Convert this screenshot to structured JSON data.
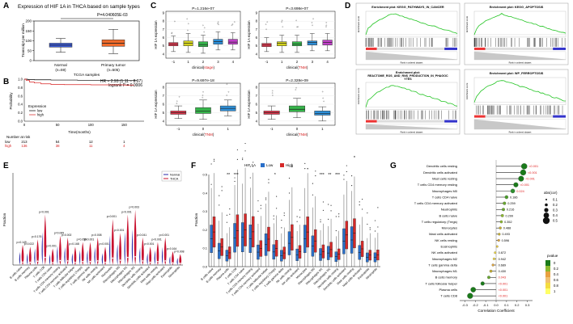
{
  "panels": {
    "A": {
      "letter": "A",
      "title": "Expression of HIF 1A in THCA based on sample types",
      "pvalue": "P=4.040605E-03",
      "ylabel": "Transcript per million",
      "xlabel": "TCGA samples",
      "yticks": [
        "0",
        "50",
        "100",
        "150",
        "200"
      ],
      "groups": [
        {
          "name": "Normal",
          "n": "(n=59)",
          "color": "#3b5bd6",
          "q1": 68,
          "median": 78,
          "q3": 88,
          "low": 42,
          "high": 112
        },
        {
          "name": "Primary tumor",
          "n": "(n=505)",
          "color": "#f06a2a",
          "q1": 72,
          "median": 88,
          "q3": 105,
          "low": 35,
          "high": 158
        }
      ]
    },
    "B": {
      "letter": "B",
      "hr_text": "HR = 2.93 (1.11 − 8.07)",
      "logrank_text": "logrank P = 0.0006",
      "ylabel": "Probability",
      "xlabel": "Time(months)",
      "yticks": [
        "0.0",
        "0.2",
        "0.4",
        "0.6",
        "0.8",
        "1.0"
      ],
      "xticks": [
        "0",
        "50",
        "100",
        "150"
      ],
      "legend_title": "Expression",
      "legend": [
        "low",
        "high"
      ],
      "risk_title": "Number at risk",
      "risk_rows": [
        {
          "label": "low",
          "values": [
            "213",
            "54",
            "12",
            "1"
          ],
          "color": "#000000"
        },
        {
          "label": "high",
          "values": [
            "136",
            "38",
            "11",
            "4"
          ],
          "color": "#d62020"
        }
      ]
    },
    "C": {
      "letter": "C",
      "ylabel": "HIF 1A expression",
      "subplots": [
        {
          "pvalue": "P=1.216e-07",
          "xlabel_prefix": "clinical(",
          "xlabel_key": "stage",
          "xlabel_suffix": ")",
          "yticks": [
            "4",
            "5",
            "6",
            "7",
            "8",
            "9"
          ],
          "ymin": 3.5,
          "ymax": 9.2,
          "categories": [
            "-1",
            "1",
            "2",
            "3",
            "4"
          ],
          "boxes": [
            {
              "color": "#e8384f",
              "q1": 5.0,
              "median": 5.2,
              "q3": 5.4,
              "low": 4.3,
              "high": 6.2
            },
            {
              "color": "#d4d41c",
              "q1": 5.0,
              "median": 5.3,
              "q3": 5.6,
              "low": 4.2,
              "high": 6.5
            },
            {
              "color": "#35b54a",
              "q1": 4.9,
              "median": 5.15,
              "q3": 5.5,
              "low": 4.1,
              "high": 6.3
            },
            {
              "color": "#2d8fd8",
              "q1": 5.2,
              "median": 5.5,
              "q3": 5.8,
              "low": 4.5,
              "high": 6.7
            },
            {
              "color": "#c040c8",
              "q1": 5.2,
              "median": 5.45,
              "q3": 5.8,
              "low": 4.5,
              "high": 6.6
            }
          ]
        },
        {
          "pvalue": "P=3.698e-07",
          "xlabel_prefix": "clinical(",
          "xlabel_key": "TNM",
          "xlabel_suffix": ")",
          "yticks": [
            "4",
            "5",
            "6",
            "7",
            "8",
            "9"
          ],
          "ymin": 3.5,
          "ymax": 9.2,
          "categories": [
            "-1",
            "1",
            "2",
            "3",
            "4"
          ],
          "boxes": [
            {
              "color": "#e8384f",
              "q1": 4.9,
              "median": 5.1,
              "q3": 5.3,
              "low": 4.3,
              "high": 6.0
            },
            {
              "color": "#d4d41c",
              "q1": 5.0,
              "median": 5.3,
              "q3": 5.5,
              "low": 4.2,
              "high": 6.3
            },
            {
              "color": "#35b54a",
              "q1": 5.0,
              "median": 5.2,
              "q3": 5.5,
              "low": 4.2,
              "high": 6.3
            },
            {
              "color": "#2d8fd8",
              "q1": 5.1,
              "median": 5.4,
              "q3": 5.6,
              "low": 4.4,
              "high": 6.5
            },
            {
              "color": "#c040c8",
              "q1": 5.1,
              "median": 5.4,
              "q3": 5.7,
              "low": 4.4,
              "high": 6.5
            }
          ]
        },
        {
          "pvalue": "P=9.697e-18",
          "xlabel_prefix": "clinical(",
          "xlabel_key": "TNM",
          "xlabel_suffix": ")",
          "yticks": [
            "4",
            "5",
            "6",
            "7",
            "8"
          ],
          "ymin": 3.5,
          "ymax": 8.5,
          "categories": [
            "-1",
            "0",
            "1"
          ],
          "boxes": [
            {
              "color": "#e8384f",
              "q1": 4.8,
              "median": 5.0,
              "q3": 5.2,
              "low": 4.3,
              "high": 5.8
            },
            {
              "color": "#35b54a",
              "q1": 4.9,
              "median": 5.2,
              "q3": 5.6,
              "low": 4.2,
              "high": 6.5
            },
            {
              "color": "#2d8fd8",
              "q1": 5.2,
              "median": 5.5,
              "q3": 5.8,
              "low": 4.6,
              "high": 6.5
            }
          ]
        },
        {
          "pvalue": "P=2.328e-09",
          "xlabel_prefix": "clinical(",
          "xlabel_key": "TNM",
          "xlabel_suffix": ")",
          "yticks": [
            "4",
            "5",
            "6",
            "7",
            "8"
          ],
          "ymin": 3.5,
          "ymax": 8.5,
          "categories": [
            "-1",
            "0",
            "1"
          ],
          "boxes": [
            {
              "color": "#e8384f",
              "q1": 4.8,
              "median": 5.0,
              "q3": 5.2,
              "low": 4.2,
              "high": 5.8
            },
            {
              "color": "#35b54a",
              "q1": 5.1,
              "median": 5.4,
              "q3": 5.8,
              "low": 4.4,
              "high": 6.7
            },
            {
              "color": "#2d8fd8",
              "q1": 4.7,
              "median": 4.9,
              "q3": 5.2,
              "low": 4.0,
              "high": 5.7
            }
          ]
        }
      ]
    },
    "D": {
      "letter": "D",
      "es_label": "Enrichment score",
      "rank_label": "Rank in ordered dataset",
      "plots": [
        {
          "title": "Enrichment plot: KEGG_PATHWAYS_IN_CANCER"
        },
        {
          "title": "Enrichment plot: KEGG_APOPTOSIS"
        },
        {
          "title": "Enrichment plot: REACTOME_ROS_AND_RNS_PRODUCTION_IN_PHAGOCYTES"
        },
        {
          "title": "Enrichment plot: WP_FERROPTOSIS"
        }
      ]
    },
    "E": {
      "letter": "E",
      "ylabel": "Fraction",
      "legend": [
        {
          "label": "Normal",
          "color": "#2a2aa8"
        },
        {
          "label": "THCA",
          "color": "#c8102e"
        }
      ],
      "cells": [
        "B cells naive",
        "B cells memory",
        "Plasma cells",
        "T cells CD8",
        "T cells CD4 naive",
        "T cells CD4 memory resting",
        "T cells CD4 memory activated",
        "T cells follicular helper",
        "T cells regulatory (Tregs)",
        "T cells gamma delta",
        "NK cells resting",
        "NK cells activated",
        "Monocytes",
        "Macrophages M0",
        "Macrophages M1",
        "Macrophages M2",
        "Dendritic cells resting",
        "Dendritic cells activated",
        "Mast cells resting",
        "Mast cells activated",
        "Eosinophils",
        "Neutrophils"
      ],
      "pvalues": [
        "p=0.149",
        "p=0.022",
        "p=0.176",
        "p<0.001",
        "p<0.001",
        "p=0.069",
        "p=0.002",
        "p=0.168",
        "p=0.055",
        "p<0.001",
        "p=0.008",
        "p<0.001",
        "p=0.001",
        "p<0.001",
        "p<0.001",
        "p=0.003",
        "p=0.041",
        "p<0.001",
        "p<0.001",
        "p=0.001",
        "p=0.164",
        "p=0.008"
      ],
      "heights": [
        0.22,
        0.2,
        0.28,
        0.55,
        0.18,
        0.32,
        0.3,
        0.2,
        0.25,
        0.25,
        0.3,
        0.2,
        0.5,
        0.35,
        0.55,
        0.6,
        0.3,
        0.2,
        0.25,
        0.3,
        0.15,
        0.12
      ]
    },
    "F": {
      "letter": "F",
      "ylabel": "Fraction",
      "legend_title": "HIF 1A",
      "legend": [
        {
          "label": "Low",
          "color": "#2a6fc9"
        },
        {
          "label": "High",
          "color": "#d62828"
        }
      ],
      "cells": [
        "B cells naive",
        "B cells memory",
        "Plasma cells",
        "T cells CD8",
        "T cells CD4 naive",
        "T cells CD4 memory resting",
        "T cells CD4 memory activated",
        "T cells follicular helper",
        "T cells regulatory (Tregs)",
        "T cells gamma delta",
        "NK cells resting",
        "NK cells activated",
        "Monocytes",
        "Macrophages M0",
        "Macrophages M1",
        "Macrophages M2",
        "Dendritic cells resting",
        "Dendritic cells activated",
        "Mast cells resting",
        "Mast cells activated",
        "Eosinophils",
        "Neutrophils"
      ],
      "stars": [
        "",
        "",
        "**",
        "***",
        "",
        "",
        "",
        "",
        "*",
        "",
        "",
        "",
        "",
        "",
        "***",
        "**",
        "***",
        "",
        "",
        "",
        "",
        ""
      ],
      "yticks": [
        "0.0",
        "0.1",
        "0.2",
        "0.3",
        "0.4",
        "0.5"
      ]
    },
    "G": {
      "letter": "G",
      "xlabel": "Correlation Coefficient",
      "xticks": [
        "-0.3",
        "-0.2",
        "-0.1",
        "0.0",
        "0.1",
        "0.2",
        "0.3"
      ],
      "abs_title": "abs(cor)",
      "abs_legend": [
        "0.1",
        "0.2",
        "0.3",
        "0.4",
        "0.5"
      ],
      "pvalue_title": "pvalue",
      "pvalue_legend": [
        {
          "label": "0",
          "color": "#1a7a1a"
        },
        {
          "label": "0.2",
          "color": "#8db92f"
        },
        {
          "label": "0.4",
          "color": "#e8a040"
        },
        {
          "label": "0.6",
          "color": "#f0c070"
        },
        {
          "label": "0.8",
          "color": "#f5dc40"
        },
        {
          "label": "1",
          "color": "#ffff66"
        }
      ],
      "rows": [
        {
          "name": "Dendritic cells resting",
          "cor": 0.27,
          "p": "<0.001",
          "color": "#1a7a1a",
          "pred": true
        },
        {
          "name": "Dendritic cells activated",
          "cor": 0.26,
          "p": "<0.001",
          "color": "#1a7a1a",
          "pred": true
        },
        {
          "name": "Mast cells resting",
          "cor": 0.24,
          "p": "<0.001",
          "color": "#1a7a1a",
          "pred": true
        },
        {
          "name": "T cells CD4 memory resting",
          "cor": 0.19,
          "p": "<0.001",
          "color": "#1a7a1a",
          "pred": true
        },
        {
          "name": "Macrophages M0",
          "cor": 0.16,
          "p": "0.024",
          "color": "#2f8f2f",
          "pred": true
        },
        {
          "name": "T cells CD4 naive",
          "cor": 0.1,
          "p": "0.186",
          "color": "#4a9d2a",
          "pred": false
        },
        {
          "name": "T cells CD4 memory activated",
          "cor": 0.08,
          "p": "0.259",
          "color": "#6aa830",
          "pred": false
        },
        {
          "name": "Neutrophils",
          "cor": 0.07,
          "p": "0.216",
          "color": "#6aa830",
          "pred": false
        },
        {
          "name": "B cells naive",
          "cor": 0.06,
          "p": "0.299",
          "color": "#8db92f",
          "pred": false
        },
        {
          "name": "T cells regulatory (Tregs)",
          "cor": 0.05,
          "p": "0.352",
          "color": "#8db92f",
          "pred": false
        },
        {
          "name": "Monocytes",
          "cor": 0.04,
          "p": "0.488",
          "color": "#c8b030",
          "pred": false
        },
        {
          "name": "Mast cells activated",
          "cor": 0.03,
          "p": "0.493",
          "color": "#c8b030",
          "pred": false
        },
        {
          "name": "NK cells resting",
          "cor": 0.025,
          "p": "0.596",
          "color": "#e0a840",
          "pred": false
        },
        {
          "name": "Eosinophils",
          "cor": 0.01,
          "p": "",
          "color": "#f0d040",
          "pred": false
        },
        {
          "name": "NK cells activated",
          "cor": -0.01,
          "p": "0.872",
          "color": "#f5dc40",
          "pred": false
        },
        {
          "name": "Macrophages M2",
          "cor": -0.02,
          "p": "0.942",
          "color": "#f5dc40",
          "pred": false
        },
        {
          "name": "T cells gamma delta",
          "cor": -0.03,
          "p": "0.689",
          "color": "#e0a840",
          "pred": false
        },
        {
          "name": "Macrophages M1",
          "cor": -0.05,
          "p": "0.430",
          "color": "#c8b030",
          "pred": false
        },
        {
          "name": "B cells memory",
          "cor": -0.07,
          "p": "0.043",
          "color": "#6aa830",
          "pred": true
        },
        {
          "name": "T cells follicular helper",
          "cor": -0.13,
          "p": "<0.001",
          "color": "#1a7a1a",
          "pred": true
        },
        {
          "name": "Plasma cells",
          "cor": -0.22,
          "p": "<0.001",
          "color": "#1a7a1a",
          "pred": true
        },
        {
          "name": "T cells CD8",
          "cor": -0.25,
          "p": "<0.001",
          "color": "#1a7a1a",
          "pred": true
        }
      ]
    }
  }
}
